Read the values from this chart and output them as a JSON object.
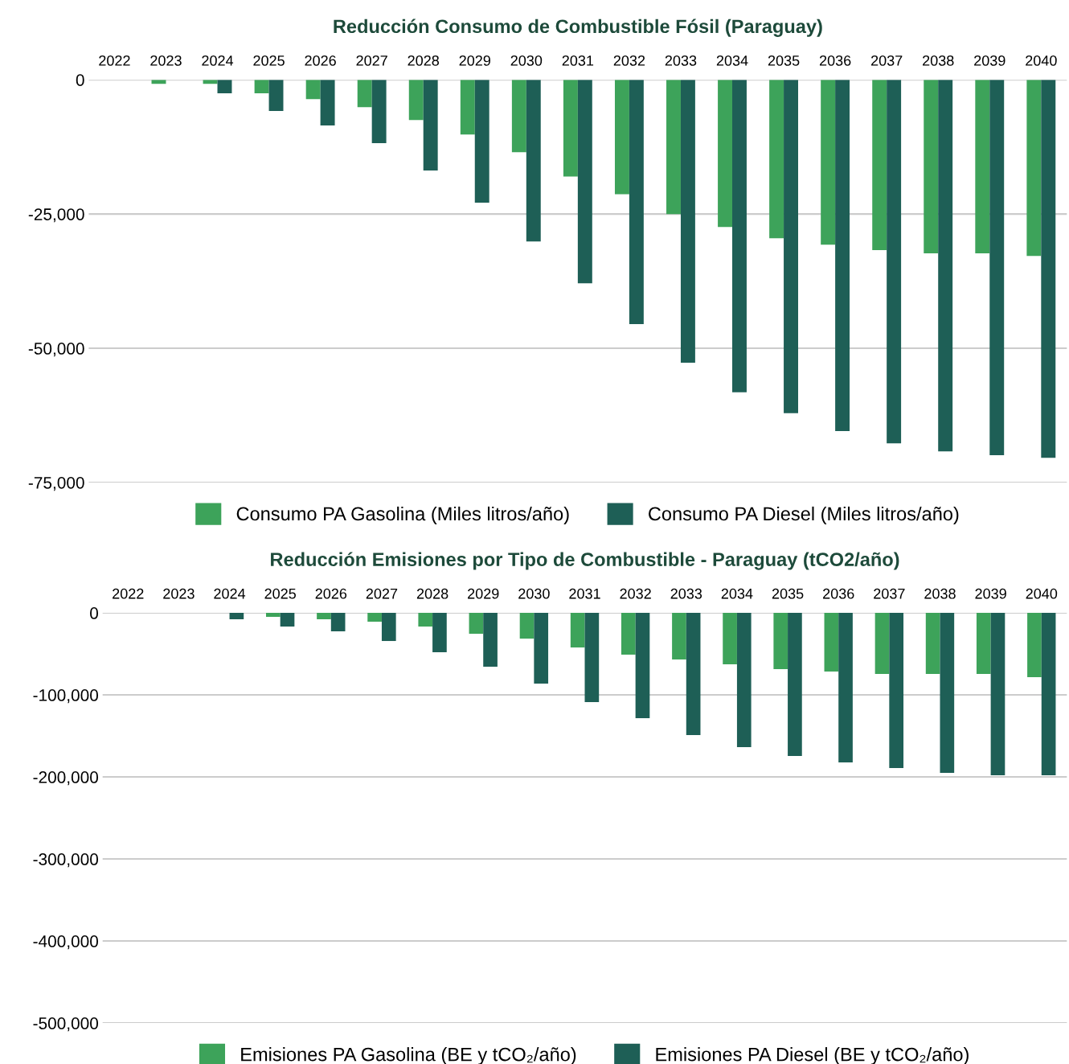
{
  "chart_data": [
    {
      "type": "bar",
      "title": "Reducción Consumo de Combustible Fósil (Paraguay)",
      "categories": [
        "2022",
        "2023",
        "2024",
        "2025",
        "2026",
        "2027",
        "2028",
        "2029",
        "2030",
        "2031",
        "2032",
        "2033",
        "2034",
        "2035",
        "2036",
        "2037",
        "2038",
        "2039",
        "2040"
      ],
      "series": [
        {
          "name": "Consumo PA Gasolina (Miles litros/año)",
          "color": "#3da35a",
          "values": [
            0,
            -750,
            -750,
            -2500,
            -3600,
            -5100,
            -7500,
            -10200,
            -13500,
            -18000,
            -21300,
            -25000,
            -27400,
            -29500,
            -30700,
            -31700,
            -32300,
            -32300,
            -32800
          ]
        },
        {
          "name": "Consumo PA Diesel (Miles litros/año)",
          "color": "#1e5f56",
          "values": [
            0,
            0,
            -2500,
            -5800,
            -8500,
            -11800,
            -16900,
            -22900,
            -30100,
            -37900,
            -45500,
            -52700,
            -58200,
            -62100,
            -65400,
            -67700,
            -69200,
            -69900,
            -70400
          ]
        }
      ],
      "ylim": [
        -75000,
        0
      ],
      "yticks": [
        {
          "value": -75000,
          "label": "-75,000"
        },
        {
          "value": -50000,
          "label": "-50,000"
        },
        {
          "value": -25000,
          "label": "-25,000"
        },
        0
      ],
      "grid": "y",
      "legend": "bottom"
    },
    {
      "type": "bar",
      "title": "Reducción Emisiones por Tipo de Combustible - Paraguay (tCO2/año)",
      "categories": [
        "2022",
        "2023",
        "2024",
        "2025",
        "2026",
        "2027",
        "2028",
        "2029",
        "2030",
        "2031",
        "2032",
        "2033",
        "2034",
        "2035",
        "2036",
        "2037",
        "2038",
        "2039",
        "2040"
      ],
      "series": [
        {
          "name": "Emisiones PA Gasolina (BE y tCO₂/año)",
          "color": "#3da35a",
          "values": [
            0,
            0,
            0,
            -4900,
            -7800,
            -10800,
            -16700,
            -25500,
            -31400,
            -42200,
            -51000,
            -56900,
            -62700,
            -68600,
            -71600,
            -74500,
            -74500,
            -74500,
            -78400
          ]
        },
        {
          "name": "Emisiones PA Diesel (BE y tCO₂/año)",
          "color": "#1e5f56",
          "values": [
            0,
            0,
            -7800,
            -16700,
            -22500,
            -34300,
            -48000,
            -65700,
            -86300,
            -108800,
            -128400,
            -149000,
            -163700,
            -174500,
            -182300,
            -189200,
            -195100,
            -198000,
            -198000
          ]
        }
      ],
      "ylim": [
        -500000,
        0
      ],
      "yticks": [
        {
          "value": -500000,
          "label": "-500,000"
        },
        {
          "value": -400000,
          "label": "-400,000"
        },
        {
          "value": -300000,
          "label": "-300,000"
        },
        {
          "value": -200000,
          "label": "-200,000"
        },
        {
          "value": -100000,
          "label": "-100,000"
        },
        0
      ],
      "grid": "y",
      "legend": "bottom"
    }
  ]
}
